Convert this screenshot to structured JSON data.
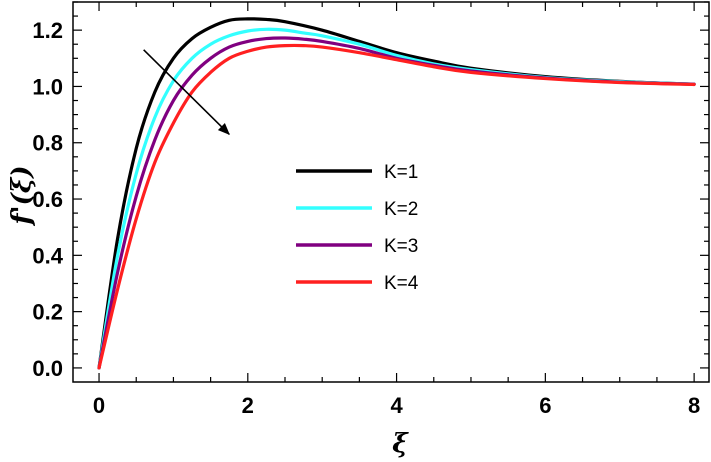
{
  "chart_data": {
    "type": "line",
    "xlabel": "ξ",
    "ylabel": "f'(ξ)",
    "xlim": [
      -0.35,
      8.2
    ],
    "ylim": [
      -0.05,
      1.3
    ],
    "xticks": [
      0,
      2,
      4,
      6,
      8
    ],
    "yticks": [
      0.0,
      0.2,
      0.4,
      0.6,
      0.8,
      1.0,
      1.2
    ],
    "xtick_labels": [
      "0",
      "2",
      "4",
      "6",
      "8"
    ],
    "ytick_labels": [
      "0.0",
      "0.2",
      "0.4",
      "0.6",
      "0.8",
      "1.0",
      "1.2"
    ],
    "grid": false,
    "legend_position": "center",
    "annotation": {
      "type": "arrow",
      "from": [
        0.6,
        1.13
      ],
      "to": [
        1.75,
        0.83
      ],
      "meaning": "increasing K"
    },
    "series": [
      {
        "name": "K=1",
        "color": "#000000",
        "x": [
          0,
          0.25,
          0.5,
          0.75,
          1.0,
          1.25,
          1.5,
          1.75,
          2.0,
          2.25,
          2.5,
          3.0,
          3.5,
          4.0,
          4.5,
          5.0,
          6.0,
          7.0,
          8.0
        ],
        "y": [
          0,
          0.46,
          0.78,
          0.98,
          1.1,
          1.17,
          1.21,
          1.235,
          1.24,
          1.238,
          1.23,
          1.2,
          1.16,
          1.12,
          1.09,
          1.065,
          1.035,
          1.018,
          1.008
        ]
      },
      {
        "name": "K=2",
        "color": "#33ffff",
        "x": [
          0,
          0.25,
          0.5,
          0.75,
          1.0,
          1.25,
          1.5,
          1.75,
          2.0,
          2.25,
          2.5,
          2.75,
          3.0,
          3.5,
          4.0,
          4.5,
          5.0,
          6.0,
          7.0,
          8.0
        ],
        "y": [
          0,
          0.4,
          0.69,
          0.89,
          1.02,
          1.1,
          1.15,
          1.18,
          1.197,
          1.203,
          1.2,
          1.19,
          1.18,
          1.15,
          1.11,
          1.08,
          1.06,
          1.032,
          1.017,
          1.008
        ]
      },
      {
        "name": "K=3",
        "color": "#800080",
        "x": [
          0,
          0.25,
          0.5,
          0.75,
          1.0,
          1.25,
          1.5,
          1.75,
          2.0,
          2.25,
          2.5,
          2.75,
          3.0,
          3.5,
          4.0,
          4.5,
          5.0,
          6.0,
          7.0,
          8.0
        ],
        "y": [
          0,
          0.34,
          0.61,
          0.81,
          0.95,
          1.04,
          1.1,
          1.14,
          1.16,
          1.17,
          1.172,
          1.168,
          1.16,
          1.135,
          1.1,
          1.075,
          1.055,
          1.03,
          1.015,
          1.008
        ]
      },
      {
        "name": "K=4",
        "color": "#ff2020",
        "x": [
          0,
          0.25,
          0.5,
          0.75,
          1.0,
          1.25,
          1.5,
          1.75,
          2.0,
          2.25,
          2.5,
          2.75,
          3.0,
          3.5,
          4.0,
          4.5,
          5.0,
          6.0,
          7.0,
          8.0
        ],
        "y": [
          0,
          0.28,
          0.53,
          0.73,
          0.87,
          0.98,
          1.05,
          1.1,
          1.125,
          1.14,
          1.145,
          1.145,
          1.14,
          1.12,
          1.095,
          1.07,
          1.05,
          1.028,
          1.014,
          1.007
        ]
      }
    ]
  }
}
